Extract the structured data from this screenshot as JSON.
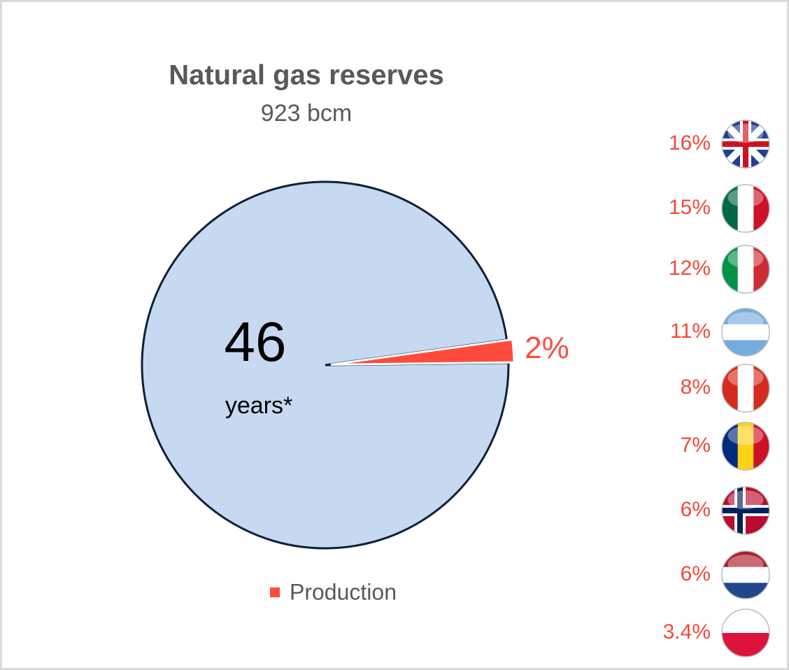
{
  "chart_data": {
    "type": "pie",
    "title": "Natural gas reserves",
    "subtitle": "923 bcm",
    "annotations": [
      "46",
      "years*"
    ],
    "categories": [
      null,
      "Production"
    ],
    "values": [
      98,
      2
    ],
    "value_labels": [
      null,
      "2%"
    ],
    "colors": [
      "#c6d9f1",
      "#ff4b3c"
    ],
    "legend": "bottom",
    "shares": [
      "16%",
      "15%",
      "12%",
      "11%",
      "8%",
      "7%",
      "6%",
      "6%",
      "3.4%"
    ]
  }
}
